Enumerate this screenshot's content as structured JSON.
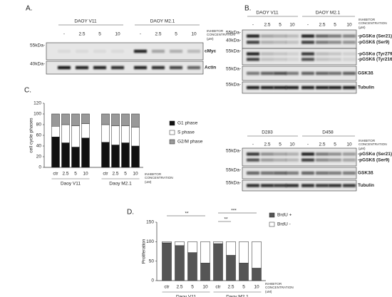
{
  "panel_a": {
    "label": "A.",
    "groups": [
      "DAOY V11",
      "DAOY M2.1"
    ],
    "lanes": [
      "-",
      "2.5",
      "5",
      "10"
    ],
    "condition": "INHIBITOR CONCENTRATION (μM)",
    "blots": [
      {
        "names": [
          "cMyc"
        ],
        "markers": [
          "55kDa-"
        ]
      },
      {
        "names": [
          "Actin"
        ],
        "markers": [
          "40kDa-"
        ]
      }
    ]
  },
  "panel_b": {
    "label": "B.",
    "groups": [
      "DAOY V11",
      "DAOY M2.1"
    ],
    "lanes": [
      "-",
      "2.5",
      "5",
      "10"
    ],
    "condition": "INHIBITOR CONCENTRATION (μM)",
    "blots": [
      {
        "names": [
          "-pGSKα (Ser21)",
          "-pGSKß (Ser9)"
        ],
        "markers": [
          "55kDa-",
          "40kDa-"
        ]
      },
      {
        "names": [
          "-pGSKα (Tyr279)",
          "-pGSKß (Tyr216)"
        ],
        "markers": [
          "55kDa-"
        ]
      },
      {
        "names": [
          "GSK3ß"
        ],
        "markers": [
          "55kDa-"
        ]
      },
      {
        "names": [
          "Tubulin"
        ],
        "markers": [
          "55kDa-"
        ]
      }
    ]
  },
  "panel_b2": {
    "groups": [
      "D283",
      "D458"
    ],
    "lanes": [
      "-",
      "2.5",
      "5",
      "10"
    ],
    "condition": "INHIBITOR CONCENTRATION (μM)",
    "blots": [
      {
        "names": [
          "-pGSKα (Ser21)",
          "-pGSKß (Ser9)"
        ],
        "markers": [
          "55kDa-"
        ]
      },
      {
        "names": [
          "GSK3ß"
        ],
        "markers": [
          "55kDa-"
        ]
      },
      {
        "names": [
          "Tubulin"
        ],
        "markers": [
          "55kDa-"
        ]
      }
    ]
  },
  "chart_data": [
    {
      "type": "stacked_bar",
      "label": "C.",
      "ylabel": "cell cycle phases",
      "condition": "INHIBITOR CONCENTRATION (uM)",
      "categories": [
        "ctr",
        "2.5",
        "5",
        "10",
        "ctr",
        "2.5",
        "5",
        "10"
      ],
      "group_labels": [
        "Daoy V11",
        "Daoy M2.1"
      ],
      "ylim": [
        0,
        120
      ],
      "yticks": [
        0,
        20,
        40,
        60,
        80,
        100,
        120
      ],
      "series": [
        {
          "name": "G1 phase",
          "color": "#111111",
          "values": [
            57,
            46,
            38,
            55,
            47,
            42,
            46,
            40
          ]
        },
        {
          "name": "S phase",
          "color": "#ffffff",
          "values": [
            20,
            34,
            40,
            27,
            33,
            36,
            32,
            35
          ]
        },
        {
          "name": "G2/M phase",
          "color": "#999999",
          "values": [
            23,
            20,
            22,
            18,
            20,
            22,
            22,
            25
          ]
        }
      ]
    },
    {
      "type": "stacked_bar",
      "label": "D.",
      "ylabel": "Proliferation",
      "condition": "INHIBITOR CONCENTRATION (uM)",
      "categories": [
        "ctr",
        "2.5",
        "5",
        "10",
        "ctr",
        "2.5",
        "5",
        "10"
      ],
      "group_labels": [
        "Daoy V11",
        "Daoy M2.1"
      ],
      "ylim": [
        0,
        150
      ],
      "yticks": [
        0,
        50,
        100,
        150
      ],
      "annotations": [
        "**",
        "***",
        "**"
      ],
      "series": [
        {
          "name": "BrdU +",
          "color": "#555555",
          "values": [
            97,
            90,
            72,
            45,
            95,
            65,
            45,
            32
          ]
        },
        {
          "name": "BrdU -",
          "color": "#ffffff",
          "values": [
            3,
            10,
            28,
            55,
            5,
            35,
            55,
            68
          ]
        }
      ]
    }
  ]
}
